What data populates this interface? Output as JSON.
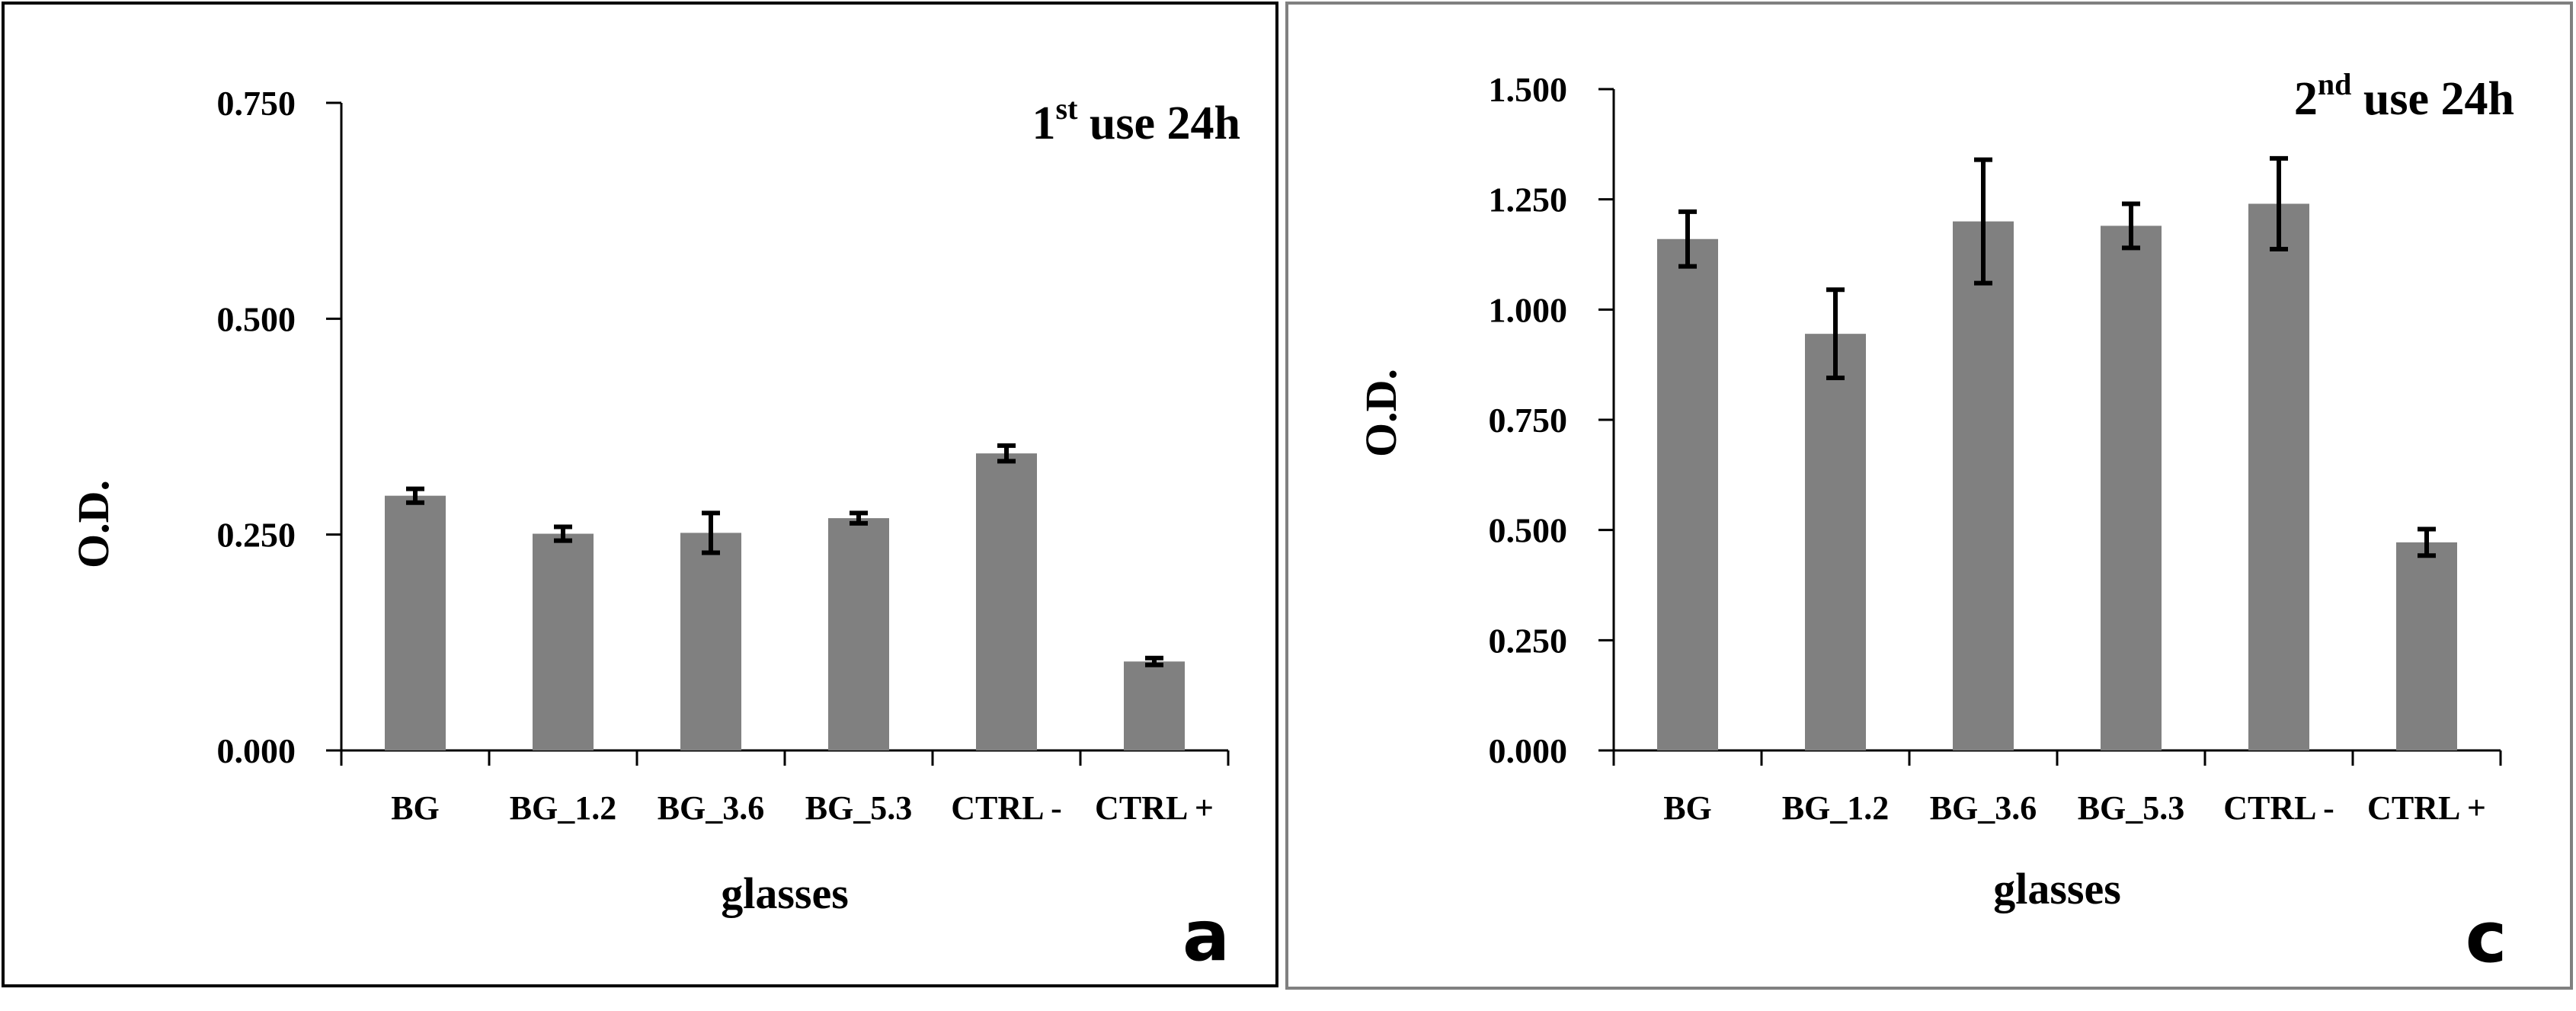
{
  "colors": {
    "bar": "#808080",
    "axis": "#000000",
    "frame": "#000000",
    "frame_right": "#808080"
  },
  "chart_data": [
    {
      "type": "bar",
      "panel_label": "a",
      "title": {
        "prefix": "1",
        "superscript": "st",
        "suffix": " use 24h"
      },
      "xlabel": "glasses",
      "ylabel": "O.D.",
      "ylim": [
        0,
        0.75
      ],
      "yticks": [
        0,
        0.25,
        0.5,
        0.75
      ],
      "ytick_labels": [
        "0.000",
        "0.250",
        "0.500",
        "0.750"
      ],
      "categories": [
        "BG",
        "BG_1.2",
        "BG_3.6",
        "BG_5.3",
        "CTRL -",
        "CTRL +"
      ],
      "values": [
        0.295,
        0.251,
        0.252,
        0.269,
        0.344,
        0.103
      ],
      "errors": [
        0.008,
        0.008,
        0.023,
        0.006,
        0.009,
        0.004
      ]
    },
    {
      "type": "bar",
      "panel_label": "c",
      "title": {
        "prefix": "2",
        "superscript": "nd",
        "suffix": " use 24h"
      },
      "xlabel": "glasses",
      "ylabel": "O.D.",
      "ylim": [
        0,
        1.5
      ],
      "yticks": [
        0,
        0.25,
        0.5,
        0.75,
        1,
        1.25,
        1.5
      ],
      "ytick_labels": [
        "0.000",
        "0.250",
        "0.500",
        "0.750",
        "1.000",
        "1.250",
        "1.500"
      ],
      "categories": [
        "BG",
        "BG_1.2",
        "BG_3.6",
        "BG_5.3",
        "CTRL -",
        "CTRL +"
      ],
      "values": [
        1.16,
        0.945,
        1.2,
        1.19,
        1.24,
        0.472
      ],
      "errors": [
        0.062,
        0.1,
        0.14,
        0.05,
        0.103,
        0.03
      ]
    }
  ]
}
